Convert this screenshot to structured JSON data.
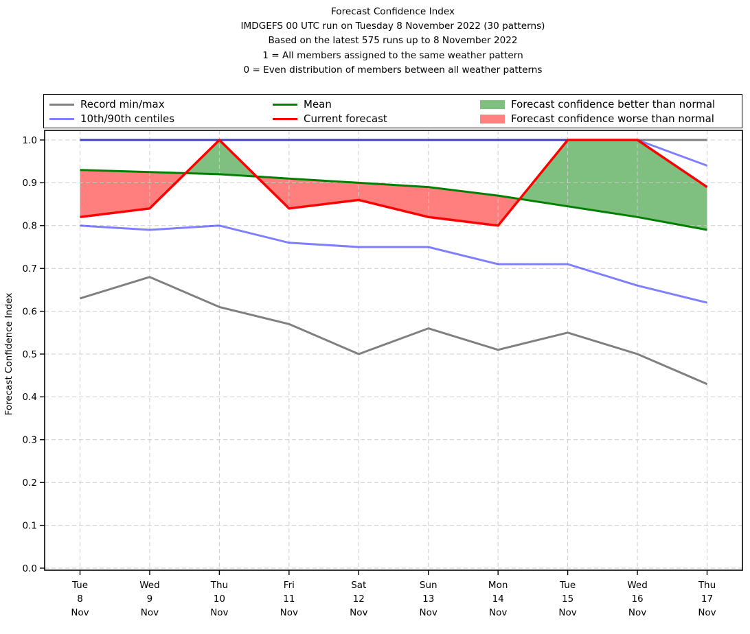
{
  "title": {
    "lines": [
      "Forecast Confidence Index",
      "IMDGEFS 00 UTC run on Tuesday 8 November 2022 (30 patterns)",
      "Based on the latest 575 runs up to 8 November 2022",
      "1 = All members assigned to the same weather pattern",
      "0 = Even distribution of members between all weather patterns"
    ]
  },
  "legend": {
    "items": [
      {
        "label": "Record min/max",
        "type": "line",
        "color": "#808080"
      },
      {
        "label": "10th/90th centiles",
        "type": "line",
        "color": "#8080ff"
      },
      {
        "label": "Mean",
        "type": "line",
        "color": "#008000"
      },
      {
        "label": "Current forecast",
        "type": "line",
        "color": "#ff0000"
      },
      {
        "label": "Forecast confidence better than normal",
        "type": "patch",
        "color": "#7fbf7f"
      },
      {
        "label": "Forecast confidence worse than normal",
        "type": "patch",
        "color": "#ff8080"
      }
    ]
  },
  "chart_data": {
    "type": "line",
    "title": "Forecast Confidence Index",
    "ylabel": "Forecast Confidence Index",
    "ylim": [
      0.0,
      1.0
    ],
    "yticks": [
      0.0,
      0.1,
      0.2,
      0.3,
      0.4,
      0.5,
      0.6,
      0.7,
      0.8,
      0.9,
      1.0
    ],
    "grid": true,
    "legend_position": "top",
    "x_categories": [
      {
        "day": "Tue",
        "date": "8",
        "month": "Nov"
      },
      {
        "day": "Wed",
        "date": "9",
        "month": "Nov"
      },
      {
        "day": "Thu",
        "date": "10",
        "month": "Nov"
      },
      {
        "day": "Fri",
        "date": "11",
        "month": "Nov"
      },
      {
        "day": "Sat",
        "date": "12",
        "month": "Nov"
      },
      {
        "day": "Sun",
        "date": "13",
        "month": "Nov"
      },
      {
        "day": "Mon",
        "date": "14",
        "month": "Nov"
      },
      {
        "day": "Tue",
        "date": "15",
        "month": "Nov"
      },
      {
        "day": "Wed",
        "date": "16",
        "month": "Nov"
      },
      {
        "day": "Thu",
        "date": "17",
        "month": "Nov"
      }
    ],
    "series": [
      {
        "name": "Record max",
        "color": "#808080",
        "alpha": 1,
        "width": 3,
        "values": [
          1.0,
          1.0,
          1.0,
          1.0,
          1.0,
          1.0,
          1.0,
          1.0,
          1.0,
          1.0
        ]
      },
      {
        "name": "Record min",
        "color": "#808080",
        "alpha": 1,
        "width": 3,
        "values": [
          0.63,
          0.68,
          0.61,
          0.57,
          0.5,
          0.56,
          0.51,
          0.55,
          0.5,
          0.43
        ]
      },
      {
        "name": "90th centile",
        "color": "#0000ff",
        "alpha": 0.5,
        "width": 3,
        "values": [
          1.0,
          1.0,
          1.0,
          1.0,
          1.0,
          1.0,
          1.0,
          1.0,
          1.0,
          0.94
        ]
      },
      {
        "name": "10th centile",
        "color": "#0000ff",
        "alpha": 0.5,
        "width": 3,
        "values": [
          0.8,
          0.79,
          0.8,
          0.76,
          0.75,
          0.75,
          0.71,
          0.71,
          0.66,
          0.62
        ]
      },
      {
        "name": "Mean",
        "color": "#008000",
        "alpha": 1,
        "width": 3,
        "values": [
          0.93,
          0.925,
          0.92,
          0.91,
          0.9,
          0.89,
          0.87,
          0.845,
          0.82,
          0.79
        ]
      },
      {
        "name": "Current forecast",
        "color": "#ff0000",
        "alpha": 1,
        "width": 3.5,
        "values": [
          0.82,
          0.84,
          1.0,
          0.84,
          0.86,
          0.82,
          0.8,
          1.0,
          1.0,
          0.89
        ]
      }
    ],
    "fills": {
      "between": [
        "Current forecast",
        "Mean"
      ],
      "better_color": "#008000",
      "worse_color": "#ff0000",
      "alpha": 0.5
    }
  }
}
